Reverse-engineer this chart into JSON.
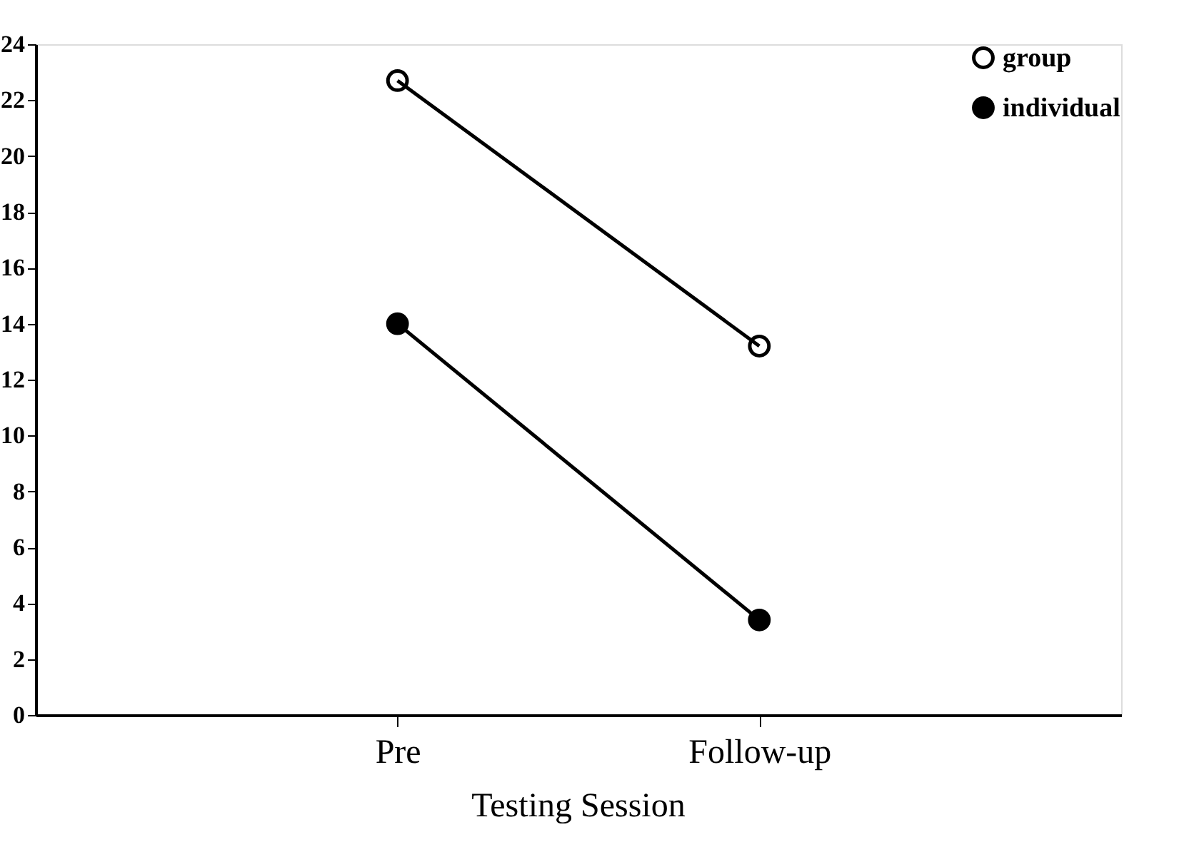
{
  "chart_data": {
    "type": "line",
    "xlabel": "Testing Session",
    "categories": [
      "Pre",
      "Follow-up"
    ],
    "series": [
      {
        "name": "group",
        "color": "#000000",
        "values": [
          22.7,
          13.2
        ]
      },
      {
        "name": "individual",
        "color": "#000000",
        "values": [
          14.0,
          3.4
        ]
      }
    ],
    "ylim": [
      0,
      24
    ],
    "yticks": [
      0,
      2,
      4,
      6,
      8,
      10,
      12,
      14,
      16,
      18,
      20,
      22,
      24
    ],
    "grid": false,
    "legend": "top right",
    "marker": "circle",
    "line_style": "solid"
  }
}
